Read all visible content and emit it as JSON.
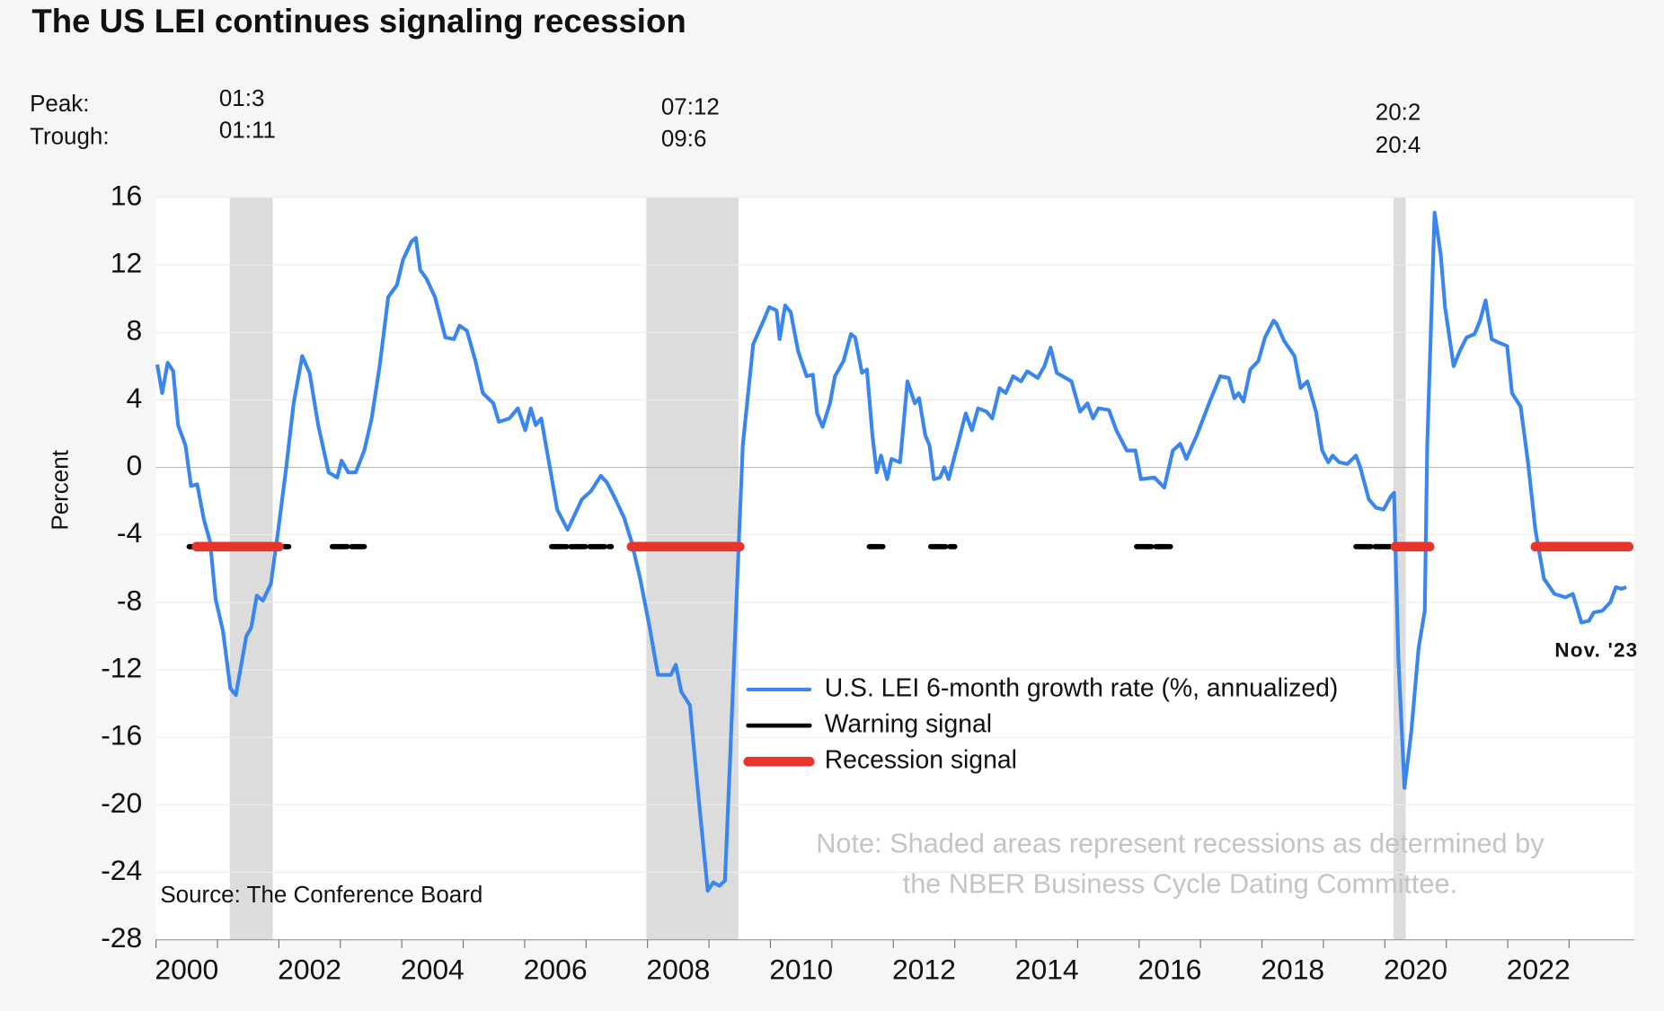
{
  "chart_data": {
    "type": "line",
    "title": "The US LEI continues signaling recession",
    "y_label": "Percent",
    "source": "Source: The Conference Board",
    "note_lines": [
      "Note: Shaded areas represent recessions as determined by",
      "the NBER Business Cycle Dating Committee."
    ],
    "end_label": "Nov. '23",
    "peak_label": "Peak:",
    "trough_label": "Trough:",
    "recessions": [
      {
        "start": 2001.2,
        "end": 2001.9,
        "peak": "01:3",
        "trough": "01:11"
      },
      {
        "start": 2007.98,
        "end": 2009.48,
        "peak": "07:12",
        "trough": "09:6"
      },
      {
        "start": 2020.14,
        "end": 2020.34,
        "peak": "20:2",
        "trough": "20:4"
      }
    ],
    "xlim": [
      2000,
      2024.06
    ],
    "ylim": [
      -28,
      16
    ],
    "yticks": [
      16,
      12,
      8,
      4,
      0,
      -4,
      -8,
      -12,
      -16,
      -20,
      -24,
      -28
    ],
    "xticks": [
      {
        "value": 2000.5,
        "label": "2000"
      },
      {
        "value": 2002.5,
        "label": "2002"
      },
      {
        "value": 2004.5,
        "label": "2004"
      },
      {
        "value": 2006.5,
        "label": "2006"
      },
      {
        "value": 2008.5,
        "label": "2008"
      },
      {
        "value": 2010.5,
        "label": "2010"
      },
      {
        "value": 2012.5,
        "label": "2012"
      },
      {
        "value": 2014.5,
        "label": "2014"
      },
      {
        "value": 2016.5,
        "label": "2016"
      },
      {
        "value": 2018.5,
        "label": "2018"
      },
      {
        "value": 2020.5,
        "label": "2020"
      },
      {
        "value": 2022.5,
        "label": "2022"
      }
    ],
    "xminor_ticks": [
      2000,
      2001,
      2002,
      2003,
      2004,
      2005,
      2006,
      2007,
      2008,
      2009,
      2010,
      2011,
      2012,
      2013,
      2014,
      2015,
      2016,
      2017,
      2018,
      2019,
      2020,
      2021,
      2022,
      2023
    ],
    "grid": true,
    "series": [
      {
        "name": "U.S. LEI 6-month growth rate (%, annualized)",
        "color": "#3a86f0",
        "x": [
          2000.02,
          2000.1,
          2000.19,
          2000.28,
          2000.36,
          2000.48,
          2000.57,
          2000.67,
          2000.78,
          2000.88,
          2000.97,
          2001.09,
          2001.21,
          2001.3,
          2001.47,
          2001.55,
          2001.64,
          2001.74,
          2001.87,
          2001.99,
          2002.12,
          2002.24,
          2002.38,
          2002.5,
          2002.64,
          2002.81,
          2002.95,
          2003.02,
          2003.13,
          2003.25,
          2003.39,
          2003.51,
          2003.64,
          2003.78,
          2003.92,
          2004.02,
          2004.16,
          2004.23,
          2004.3,
          2004.4,
          2004.54,
          2004.71,
          2004.85,
          2004.94,
          2005.06,
          2005.2,
          2005.32,
          2005.49,
          2005.58,
          2005.75,
          2005.89,
          2006.01,
          2006.1,
          2006.18,
          2006.27,
          2006.41,
          2006.53,
          2006.7,
          2006.93,
          2007.08,
          2007.24,
          2007.34,
          2007.48,
          2007.62,
          2007.74,
          2007.88,
          2008.03,
          2008.17,
          2008.38,
          2008.46,
          2008.55,
          2008.69,
          2008.81,
          2008.98,
          2009.07,
          2009.17,
          2009.26,
          2009.34,
          2009.55,
          2009.72,
          2009.9,
          2009.98,
          2010.1,
          2010.15,
          2010.24,
          2010.33,
          2010.45,
          2010.59,
          2010.69,
          2010.76,
          2010.85,
          2010.97,
          2011.05,
          2011.19,
          2011.31,
          2011.38,
          2011.49,
          2011.57,
          2011.66,
          2011.73,
          2011.8,
          2011.9,
          2011.97,
          2012.11,
          2012.23,
          2012.35,
          2012.42,
          2012.52,
          2012.59,
          2012.66,
          2012.76,
          2012.83,
          2012.9,
          2013.0,
          2013.18,
          2013.28,
          2013.38,
          2013.52,
          2013.61,
          2013.73,
          2013.83,
          2013.95,
          2014.08,
          2014.18,
          2014.35,
          2014.46,
          2014.56,
          2014.66,
          2014.9,
          2015.04,
          2015.16,
          2015.25,
          2015.34,
          2015.51,
          2015.63,
          2015.8,
          2015.94,
          2016.03,
          2016.25,
          2016.41,
          2016.55,
          2016.67,
          2016.77,
          2016.94,
          2017.15,
          2017.32,
          2017.46,
          2017.55,
          2017.62,
          2017.7,
          2017.81,
          2017.94,
          2018.05,
          2018.19,
          2018.24,
          2018.36,
          2018.53,
          2018.63,
          2018.74,
          2018.88,
          2018.98,
          2019.08,
          2019.15,
          2019.26,
          2019.39,
          2019.53,
          2019.6,
          2019.74,
          2019.86,
          2019.98,
          2020.1,
          2020.15,
          2020.22,
          2020.32,
          2020.43,
          2020.55,
          2020.65,
          2020.69,
          2020.81,
          2020.91,
          2020.98,
          2021.12,
          2021.22,
          2021.33,
          2021.46,
          2021.55,
          2021.64,
          2021.74,
          2021.85,
          2021.99,
          2022.07,
          2022.21,
          2022.33,
          2022.45,
          2022.59,
          2022.76,
          2022.94,
          2023.06,
          2023.2,
          2023.32,
          2023.4,
          2023.54,
          2023.67,
          2023.76,
          2023.85,
          2023.93
        ],
        "values": [
          6.1,
          4.4,
          6.2,
          5.7,
          2.5,
          1.3,
          -1.1,
          -1.0,
          -3.1,
          -4.4,
          -7.8,
          -9.7,
          -13.1,
          -13.5,
          -10.0,
          -9.5,
          -7.6,
          -7.9,
          -6.9,
          -3.7,
          0,
          3.8,
          6.6,
          5.6,
          2.5,
          -0.3,
          -0.6,
          0.4,
          -0.3,
          -0.3,
          1.0,
          2.9,
          6.0,
          10.1,
          10.8,
          12.3,
          13.4,
          13.6,
          11.7,
          11.2,
          10.1,
          7.7,
          7.6,
          8.4,
          8.1,
          6.3,
          4.4,
          3.8,
          2.7,
          2.9,
          3.5,
          2.2,
          3.5,
          2.5,
          2.9,
          0,
          -2.5,
          -3.7,
          -1.9,
          -1.4,
          -0.5,
          -0.9,
          -1.9,
          -3.0,
          -4.4,
          -6.6,
          -9.4,
          -12.3,
          -12.3,
          -11.7,
          -13.3,
          -14.1,
          -18.8,
          -25.1,
          -24.6,
          -24.8,
          -24.5,
          -17.6,
          1.3,
          7.3,
          8.8,
          9.5,
          9.3,
          7.6,
          9.6,
          9.2,
          6.9,
          5.4,
          5.5,
          3.2,
          2.4,
          3.8,
          5.4,
          6.3,
          7.9,
          7.7,
          5.6,
          5.8,
          1.9,
          -0.3,
          0.7,
          -0.7,
          0.5,
          0.3,
          5.1,
          3.8,
          4.1,
          1.9,
          1.3,
          -0.7,
          -0.6,
          0,
          -0.7,
          0.7,
          3.2,
          2.2,
          3.5,
          3.3,
          2.9,
          4.7,
          4.4,
          5.4,
          5.1,
          5.7,
          5.3,
          6.0,
          7.1,
          5.6,
          5.1,
          3.3,
          3.8,
          2.9,
          3.5,
          3.4,
          2.2,
          1.0,
          1.0,
          -0.7,
          -0.6,
          -1.2,
          1.0,
          1.4,
          0.5,
          1.9,
          3.9,
          5.4,
          5.3,
          4.1,
          4.4,
          3.9,
          5.8,
          6.3,
          7.7,
          8.7,
          8.5,
          7.5,
          6.6,
          4.7,
          5.1,
          3.3,
          1.0,
          0.3,
          0.7,
          0.3,
          0.2,
          0.7,
          0,
          -1.9,
          -2.4,
          -2.5,
          -1.7,
          -1.5,
          -11.3,
          -19.0,
          -15.7,
          -10.7,
          -8.5,
          1.3,
          15.1,
          12.6,
          9.5,
          6.0,
          6.9,
          7.7,
          7.9,
          8.7,
          9.9,
          7.6,
          7.4,
          7.2,
          4.4,
          3.6,
          0.3,
          -3.7,
          -6.6,
          -7.5,
          -7.7,
          -7.5,
          -9.2,
          -9.1,
          -8.6,
          -8.5,
          -8.0,
          -7.1,
          -7.2,
          -7.1
        ]
      }
    ],
    "signals": [
      {
        "name": "Warning signal",
        "color": "#000000",
        "level": -4.7,
        "periods": [
          [
            2000.54,
            2002.16
          ],
          [
            2002.87,
            2003.39
          ],
          [
            2006.44,
            2007.41
          ],
          [
            2011.61,
            2011.83
          ],
          [
            2012.61,
            2013.0
          ],
          [
            2015.96,
            2016.51
          ],
          [
            2019.53,
            2020.17
          ]
        ]
      },
      {
        "name": "Recession signal",
        "color": "#e8352b",
        "level": -4.7,
        "periods": [
          [
            2000.66,
            2002.0
          ],
          [
            2007.74,
            2009.5
          ],
          [
            2020.17,
            2020.73
          ],
          [
            2022.45,
            2023.97
          ]
        ]
      }
    ]
  }
}
